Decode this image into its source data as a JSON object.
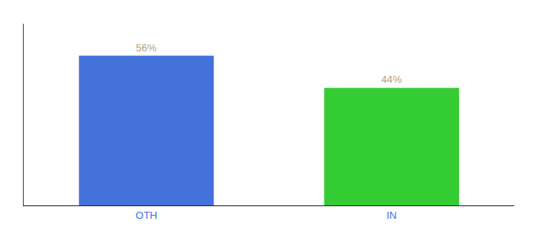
{
  "chart_data": {
    "type": "bar",
    "categories": [
      "OTH",
      "IN"
    ],
    "values": [
      56,
      44
    ],
    "value_labels": [
      "56%",
      "44%"
    ],
    "colors": [
      "#4472db",
      "#33cc33"
    ],
    "ylim": [
      0,
      68
    ],
    "data_labels": true,
    "tick_labels": "x",
    "grid": false
  }
}
